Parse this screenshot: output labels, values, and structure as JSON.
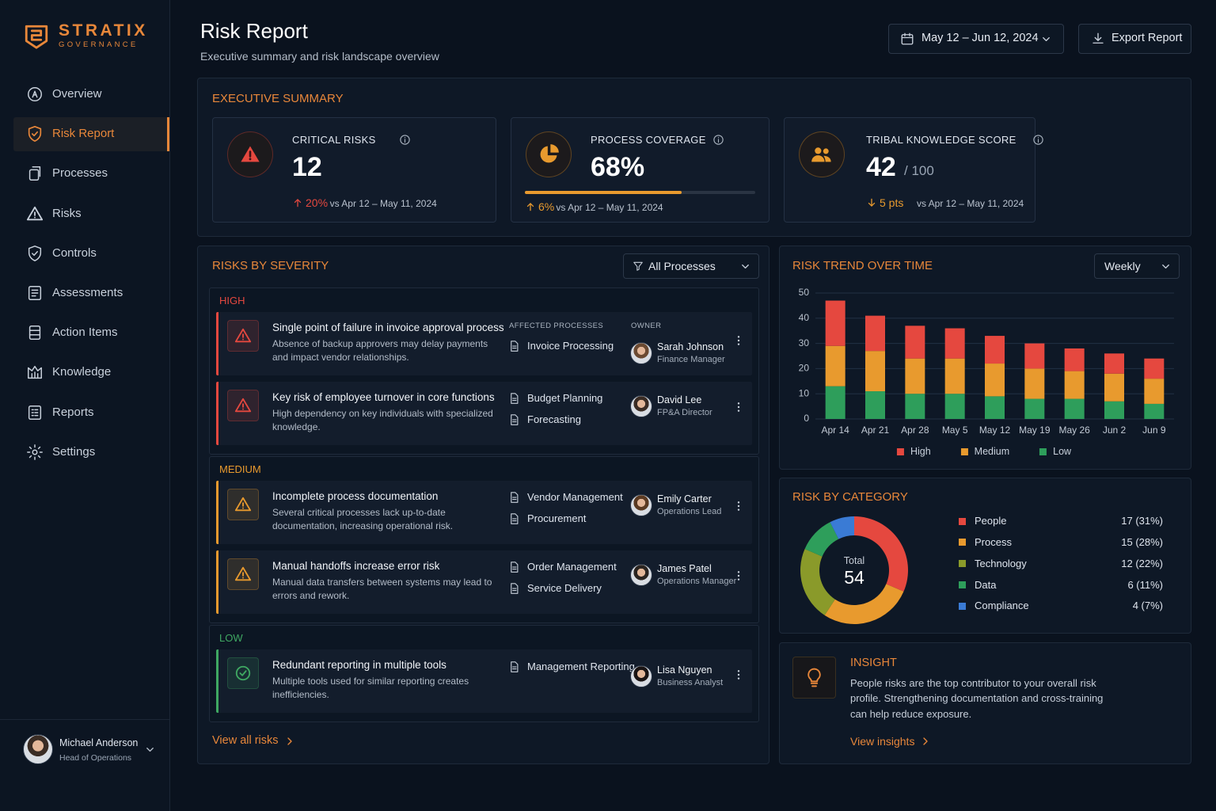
{
  "brand": {
    "name": "STRATIX",
    "tagline": "GOVERNANCE"
  },
  "nav": {
    "items": [
      "Overview",
      "Risk Report",
      "Processes",
      "Risks",
      "Controls",
      "Assessments",
      "Action Items",
      "Knowledge",
      "Reports",
      "Settings"
    ],
    "active": 1
  },
  "user": {
    "name": "Michael Anderson",
    "role": "Head of Operations"
  },
  "header": {
    "title": "Risk Report",
    "subtitle": "Executive summary and risk landscape overview",
    "date_range": "May 12 – Jun 12, 2024",
    "export": "Export Report"
  },
  "summary": {
    "title": "EXECUTIVE SUMMARY",
    "cards": [
      {
        "label": "CRITICAL RISKS",
        "value": "12",
        "change": "20%",
        "trend": "up",
        "compare": "vs Apr 12 – May 11, 2024",
        "color": "#e5483f"
      },
      {
        "label": "PROCESS COVERAGE",
        "value": {
          "value": 68,
          "label": "68%"
        },
        "change": "6%",
        "trend": "up",
        "compare": "vs Apr 12 – May 11, 2024",
        "color": "#e89a2e"
      },
      {
        "label": "TRIBAL KNOWLEDGE SCORE",
        "value": "42",
        "scale": "/ 100",
        "change": "5 pts",
        "trend": "down",
        "compare": "vs Apr 12 – May 11, 2024",
        "color": "#e89a2e"
      }
    ]
  },
  "severity": {
    "title": "RISKS BY SEVERITY",
    "filter": "All Processes",
    "columns": [
      "AFFECTED PROCESSES",
      "OWNER"
    ],
    "groups": [
      {
        "name": "HIGH",
        "color": "#e5483f",
        "risks": [
          {
            "title": "Single point of failure in invoice approval process",
            "description": "Absence of backup approvers may delay payments and impact vendor relationships.",
            "processes": [
              "Invoice Processing"
            ],
            "owner": {
              "name": "Sarah Johnson",
              "role": "Finance Manager"
            }
          },
          {
            "title": "Key risk of employee turnover in core functions",
            "description": "High dependency on key individuals with specialized knowledge.",
            "processes": [
              "Budget Planning",
              "Forecasting"
            ],
            "owner": {
              "name": "David Lee",
              "role": "FP&A Director"
            }
          }
        ]
      },
      {
        "name": "MEDIUM",
        "color": "#e89a2e",
        "risks": [
          {
            "title": "Incomplete process documentation",
            "description": "Several critical processes lack up-to-date documentation, increasing operational risk.",
            "processes": [
              "Vendor Management",
              "Procurement"
            ],
            "owner": {
              "name": "Emily Carter",
              "role": "Operations Lead"
            }
          },
          {
            "title": "Manual handoffs increase error risk",
            "description": "Manual data transfers between systems may lead to errors and rework.",
            "processes": [
              "Order Management",
              "Service Delivery"
            ],
            "owner": {
              "name": "James Patel",
              "role": "Operations Manager"
            }
          }
        ]
      },
      {
        "name": "LOW",
        "color": "#3fa862",
        "risks": [
          {
            "title": "Redundant reporting in multiple tools",
            "description": "Multiple tools used for similar reporting creates inefficiencies.",
            "processes": [
              "Management Reporting"
            ],
            "owner": {
              "name": "Lisa Nguyen",
              "role": "Business Analyst"
            }
          }
        ]
      }
    ],
    "link": "View all risks"
  },
  "chart_data": [
    {
      "type": "bar",
      "stacked": true,
      "title": "RISK TREND OVER TIME",
      "control": "Weekly",
      "categories": [
        "Apr 14",
        "Apr 21",
        "Apr 28",
        "May 5",
        "May 12",
        "May 19",
        "May 26",
        "Jun 2",
        "Jun 9"
      ],
      "series": [
        {
          "name": "High",
          "color": "#e5483f",
          "values": [
            18,
            14,
            13,
            12,
            11,
            10,
            9,
            8,
            8
          ]
        },
        {
          "name": "Medium",
          "color": "#e89a2e",
          "values": [
            16,
            16,
            14,
            14,
            13,
            12,
            11,
            11,
            10
          ]
        },
        {
          "name": "Low",
          "color": "#2e9e5b",
          "values": [
            13,
            11,
            10,
            10,
            9,
            8,
            8,
            7,
            6
          ]
        }
      ],
      "ylim": [
        0,
        50
      ],
      "yticks": [
        0,
        10,
        20,
        30,
        40,
        50
      ],
      "grid": true
    },
    {
      "type": "pie",
      "donut": true,
      "title": "RISK BY CATEGORY",
      "center_label": "Total",
      "total": 54,
      "categories": [
        "People",
        "Process",
        "Technology",
        "Data",
        "Compliance"
      ],
      "values": [
        17,
        15,
        12,
        6,
        4
      ],
      "value_labels": [
        "17 (31%)",
        "15 (28%)",
        "12 (22%)",
        "6 (11%)",
        "4 (7%)"
      ],
      "colors": [
        "#e5483f",
        "#e89a2e",
        "#8a9a2a",
        "#2e9e5b",
        "#3a7bd5"
      ]
    }
  ],
  "insight": {
    "title": "INSIGHT",
    "text": "People risks are the top contributor to your overall risk profile. Strengthening documentation and cross-training can help reduce exposure.",
    "link": "View insights"
  }
}
